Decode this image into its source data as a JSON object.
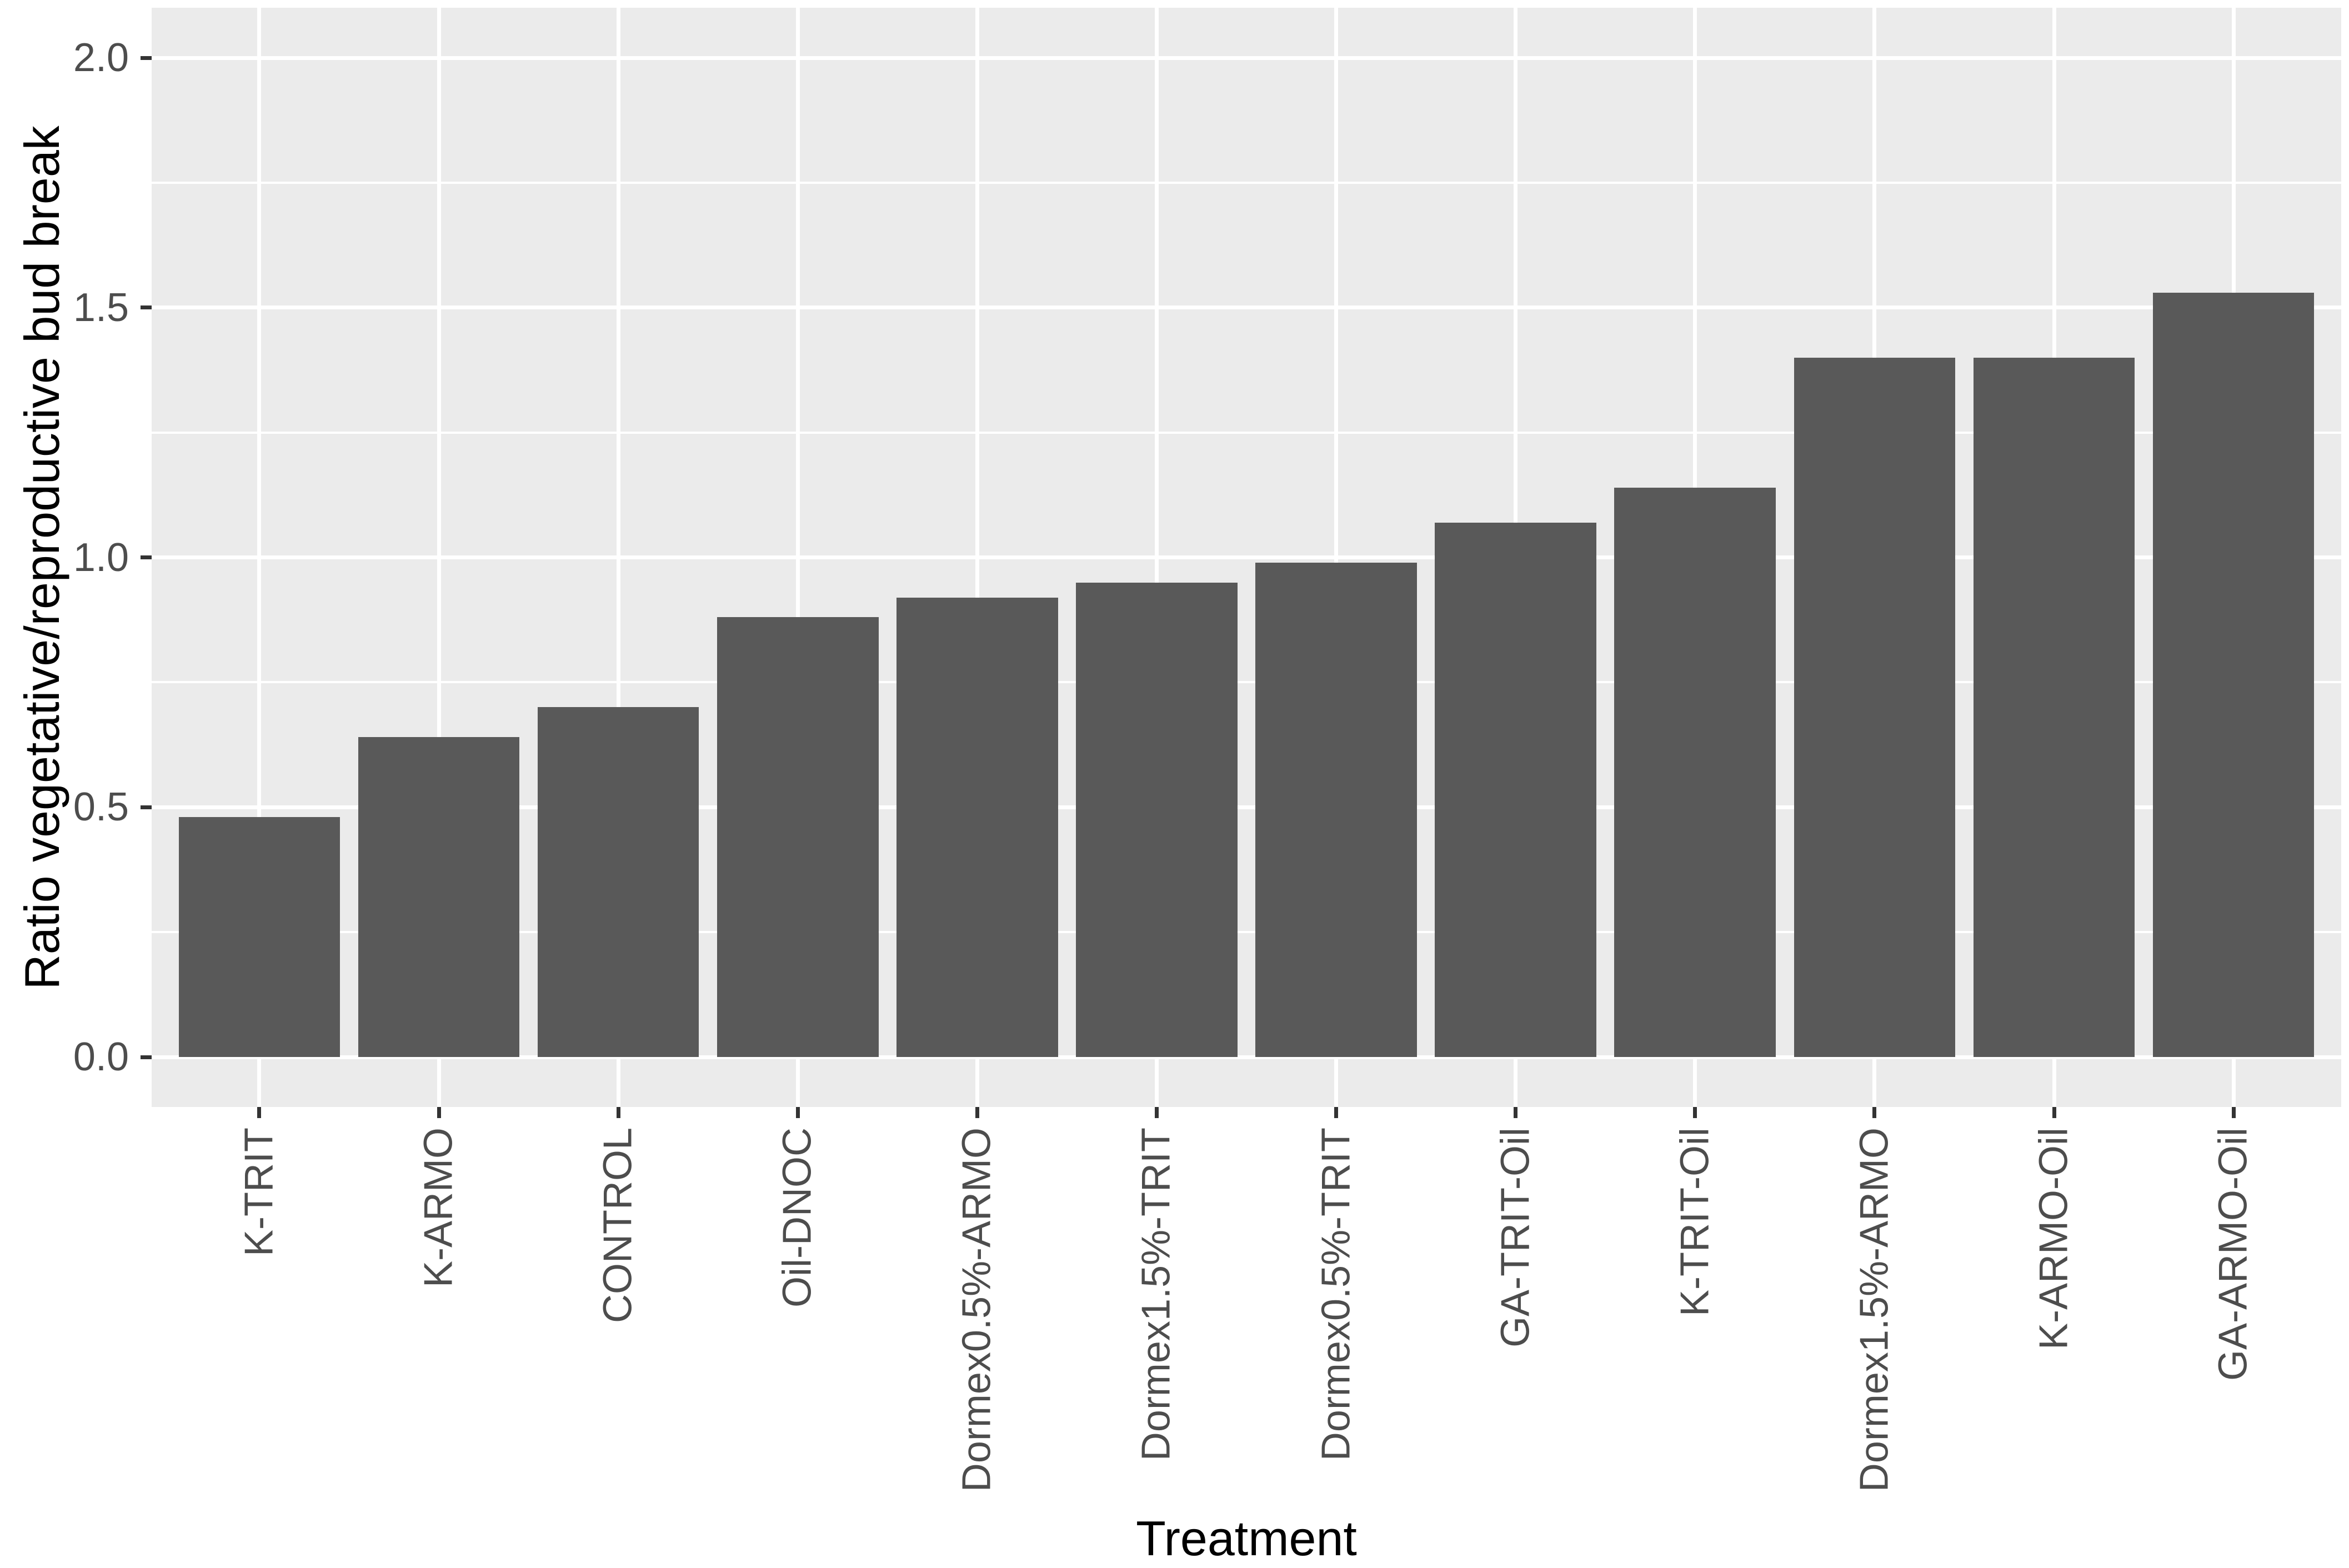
{
  "chart_data": {
    "type": "bar",
    "title": "",
    "xlabel": "Treatment",
    "ylabel": "Ratio vegetative/reproductive bud break",
    "categories": [
      "K-TRIT",
      "K-ARMO",
      "CONTROL",
      "Oil-DNOC",
      "Dormex0.5%-ARMO",
      "Dormex1.5%-TRIT",
      "Dormex0.5%-TRIT",
      "GA-TRIT-Oil",
      "K-TRIT-Oil",
      "Dormex1.5%-ARMO",
      "K-ARMO-Oil",
      "GA-ARMO-Oil"
    ],
    "values": [
      0.48,
      0.64,
      0.7,
      0.88,
      0.92,
      0.95,
      0.99,
      1.07,
      1.14,
      1.4,
      1.4,
      1.53
    ],
    "ylim": [
      0,
      2
    ],
    "ytick_values": [
      0,
      0.5,
      1,
      1.5,
      2
    ],
    "ytick_labels": [
      "0.0",
      "0.5",
      "1.0",
      "1.5",
      "2.0"
    ],
    "minor_gridline_values": [
      0.25,
      0.75,
      1.25,
      1.75
    ],
    "legend_position": "none",
    "grid": "on",
    "grid_description": "white major horizontal gridlines at 0.5 steps, white minor at 0.25 steps, white vertical gridlines at category centers, light gray panel background",
    "style": {
      "bar_fill": "#595959",
      "panel_background": "#EBEBEB",
      "gridline_color": "#FFFFFF",
      "tick_mark_color": "#333333",
      "tick_label_color": "#4D4D4D",
      "axis_title_color": "#000000",
      "page_background": "#FFFFFF"
    }
  }
}
